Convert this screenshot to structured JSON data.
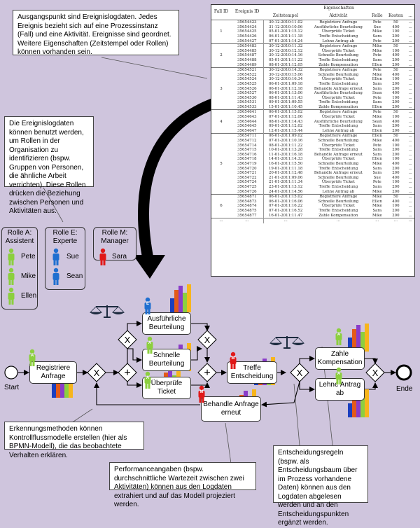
{
  "callouts": {
    "log_intro": "Ausgangspunkt sind Ereignislogdaten. Jedes Ereignis bezieht sich auf eine Prozessinstanz (Fall) und eine Aktivität. Ereignisse sind geordnet. Weitere Eigenschaften (Zeitstempel oder Rollen) können vorhanden sein.",
    "roles_intro": "Die Ereignislogdaten können benutzt werden, um Rollen in der Organisation zu identifizieren (bspw. Gruppen von Personen, die ähnliche Arbeit verrichten). Diese Rollen drücken die Beziehung zwischen Personen und Aktivitäten aus.",
    "discovery": "Erkennungsmethoden können Kontrollflussmodelle erstellen (hier als BPMN-Modell), die das beobachtete Verhalten erklären.",
    "performance": "Performanceangaben (bspw. durchschnittliche Wartezeit zwischen zwei Aktivitäten) können aus den Logdaten extrahiert und auf das Modell projeziert werden.",
    "decision": "Entscheidungsregeln (bspw. als Entscheidungsbaum über im Prozess vorhandene Daten) können aus den Logdaten abgelesen werden und an den Entscheidungspunkten ergänzt werden."
  },
  "table": {
    "headers": {
      "fall_id": "Fall ID",
      "ereignis_id": "Ereignis ID",
      "eigenschaften": "Eigenschaften",
      "zeitstempel": "Zeitstempel",
      "aktivitaet": "Aktivität",
      "rolle": "Rolle",
      "kosten": "Kosten",
      "more": "..."
    },
    "cases": [
      {
        "id": "1",
        "rows": [
          [
            "35654423",
            "30-12-2010:11.02",
            "Registriere Anfrage",
            "Pete",
            "50",
            "..."
          ],
          [
            "35654424",
            "31-12-2010:10.06",
            "Ausführliche Beurteilung",
            "Sue",
            "400",
            "..."
          ],
          [
            "35654425",
            "05-01-2011:15.12",
            "Überprüfe Ticket",
            "Mike",
            "100",
            "..."
          ],
          [
            "35654426",
            "06-01-2011:11.18",
            "Treffe Entscheidung",
            "Sara",
            "200",
            "..."
          ],
          [
            "35654427",
            "07-01-2011:14.24",
            "Lehne Antrag ab",
            "Pete",
            "200",
            "..."
          ]
        ]
      },
      {
        "id": "2",
        "rows": [
          [
            "35654483",
            "30-12-2010:11.32",
            "Registriere Anfrage",
            "Mike",
            "50",
            "..."
          ],
          [
            "35654485",
            "30-12-2010:12.12",
            "Überprüfe Ticket",
            "Mike",
            "100",
            "..."
          ],
          [
            "35654487",
            "30-12-2010:14.16",
            "Schnelle Beurteilung",
            "Pete",
            "400",
            "..."
          ],
          [
            "35654488",
            "05-01-2011:11.22",
            "Treffe Entscheidung",
            "Sara",
            "200",
            "..."
          ],
          [
            "35654489",
            "08-01-2011:12.05",
            "Zahle Kompensation",
            "Ellen",
            "200",
            "..."
          ]
        ]
      },
      {
        "id": "3",
        "rows": [
          [
            "35654521",
            "30-12-2010:14.32",
            "Registriere Anfrage",
            "Pete",
            "50",
            "..."
          ],
          [
            "35654522",
            "30-12-2010:15.06",
            "Schnelle Beurteilung",
            "Mike",
            "400",
            "..."
          ],
          [
            "35654524",
            "30-12-2010:16.34",
            "Überprüfe Ticket",
            "Ellen",
            "100",
            "..."
          ],
          [
            "35654525",
            "06-01-2011:09.18",
            "Treffe Entscheidung",
            "Sara",
            "200",
            "..."
          ],
          [
            "35654526",
            "06-01-2011:12.18",
            "Behandle Anfrage erneut",
            "Sara",
            "200",
            "..."
          ],
          [
            "35654527",
            "06-01-2011:13.06",
            "Ausführliche Beurteilung",
            "Sean",
            "400",
            "..."
          ],
          [
            "35654530",
            "08-01-2011:11.43",
            "Überprüfe Ticket",
            "Pete",
            "100",
            "..."
          ],
          [
            "35654531",
            "09-01-2011:09.55",
            "Treffe Entscheidung",
            "Sara",
            "200",
            "..."
          ],
          [
            "35654533",
            "15-01-2011:10.45",
            "Zahle Kompensation",
            "Ellen",
            "200",
            "..."
          ]
        ]
      },
      {
        "id": "4",
        "rows": [
          [
            "35654641",
            "06-01-2011:15.02",
            "Registriere Anfrage",
            "Pete",
            "50",
            "..."
          ],
          [
            "35654643",
            "07-01-2011:12.06",
            "Überprüfe Ticket",
            "Mike",
            "100",
            "..."
          ],
          [
            "35654644",
            "08-01-2011:14.43",
            "Ausführliche Beurteilung",
            "Sean",
            "400",
            "..."
          ],
          [
            "35654645",
            "09-01-2011:12.02",
            "Treffe Entscheidung",
            "Sara",
            "200",
            "..."
          ],
          [
            "35654647",
            "12-01-2011:15.44",
            "Lehne Antrag ab",
            "Ellen",
            "200",
            "..."
          ]
        ]
      },
      {
        "id": "5",
        "rows": [
          [
            "35654711",
            "06-01-2011:09.02",
            "Registriere Anfrage",
            "Ellen",
            "50",
            "..."
          ],
          [
            "35654712",
            "07-01-2011:10.16",
            "Schnelle Beurteilung",
            "Mike",
            "400",
            "..."
          ],
          [
            "35654714",
            "08-01-2011:11.22",
            "Überprüfe Ticket",
            "Pete",
            "100",
            "..."
          ],
          [
            "35654715",
            "10-01-2011:13.28",
            "Treffe Entscheidung",
            "Sara",
            "200",
            "..."
          ],
          [
            "35654716",
            "11-01-2011:16.18",
            "Behandle Anfrage erneut",
            "Sara",
            "200",
            "..."
          ],
          [
            "35654718",
            "14-01-2011:14.33",
            "Überprüfe Ticket",
            "Ellen",
            "100",
            "..."
          ],
          [
            "35654719",
            "16-01-2011:15.50",
            "Schnelle Beurteilung",
            "Mike",
            "400",
            "..."
          ],
          [
            "35654720",
            "19-01-2011:11.18",
            "Treffe Entscheidung",
            "Sara",
            "200",
            "..."
          ],
          [
            "35654721",
            "20-01-2011:12.48",
            "Behandle Anfrage erneut",
            "Sara",
            "200",
            "..."
          ],
          [
            "35654722",
            "21-01-2011:09.06",
            "Schnelle Beurteilung",
            "Sue",
            "400",
            "..."
          ],
          [
            "35654724",
            "21-01-2011:11.34",
            "Überprüfe Ticket",
            "Pete",
            "100",
            "..."
          ],
          [
            "35654725",
            "23-01-2011:13.12",
            "Treffe Entscheidung",
            "Sara",
            "200",
            "..."
          ],
          [
            "35654726",
            "24-01-2011:14.56",
            "Lehne Antrag ab",
            "Mike",
            "200",
            "..."
          ]
        ]
      },
      {
        "id": "6",
        "rows": [
          [
            "35654871",
            "06-01-2011:15.02",
            "Registriere Anfrage",
            "Mike",
            "50",
            "..."
          ],
          [
            "35654873",
            "06-01-2011:16.06",
            "Schnelle Beurteilung",
            "Ellen",
            "400",
            "..."
          ],
          [
            "35654874",
            "07-01-2011:16.22",
            "Überprüfe Ticket",
            "Mike",
            "100",
            "..."
          ],
          [
            "35654875",
            "07-01-2011:16.52",
            "Treffe Entscheidung",
            "Sara",
            "200",
            "..."
          ],
          [
            "35654877",
            "16-01-2011:11.47",
            "Zahle Kompensation",
            "Mike",
            "200",
            "..."
          ]
        ]
      },
      {
        "id": "...",
        "rows": [
          [
            "...",
            "...",
            "...",
            "...",
            "...",
            "..."
          ]
        ]
      }
    ]
  },
  "roles": [
    {
      "title": "Rolle A: Assistent",
      "color": "#8ccf3f",
      "members": [
        "Pete",
        "Mike",
        "Ellen"
      ]
    },
    {
      "title": "Rolle E: Experte",
      "color": "#1f6fd0",
      "members": [
        "Sue",
        "Sean"
      ]
    },
    {
      "title": "Rolle M: Manager",
      "color": "#e01818",
      "members": [
        "Sara"
      ]
    }
  ],
  "process": {
    "start_label": "Start",
    "end_label": "Ende",
    "tasks": {
      "registriere": "Registriere Anfrage",
      "ausfuehrlich": "Ausführliche Beurteilung",
      "schnell": "Schnelle Beurteilung",
      "ueberpruefe": "Überprüfe Ticket",
      "treffe": "Treffe Entscheidung",
      "behandle": "Behandle Anfrage erneut",
      "zahle": "Zahle Kompensation",
      "lehne": "Lehne Antrag ab"
    },
    "role_badges": {
      "assistant": "A",
      "expert": "E",
      "manager": "M"
    },
    "gateway_xor": "X",
    "gateway_and": "+"
  }
}
